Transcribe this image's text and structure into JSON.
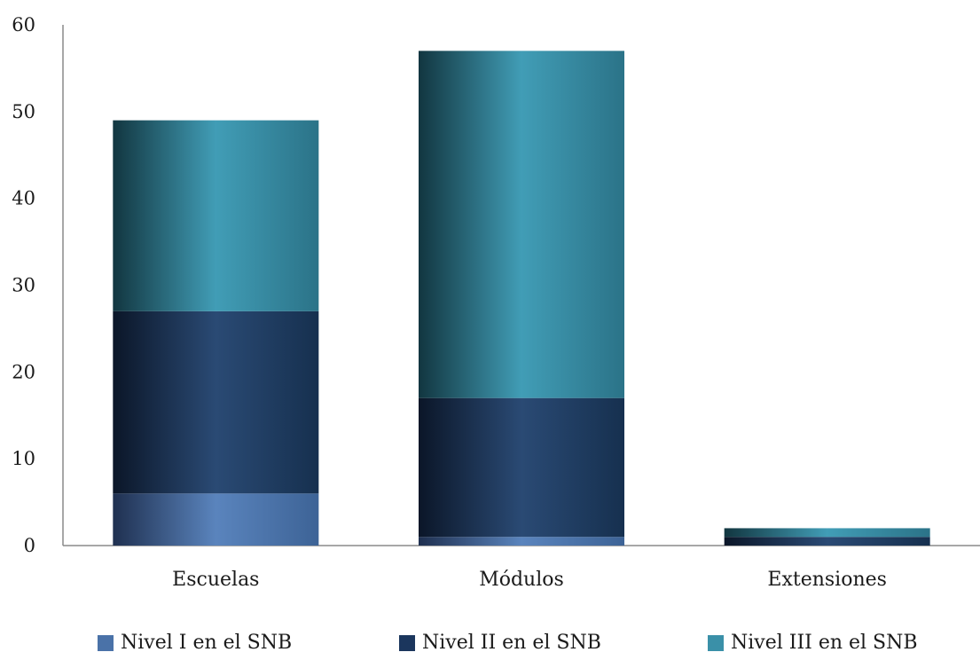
{
  "chart_data": {
    "type": "bar",
    "stacked": true,
    "categories": [
      "Escuelas",
      "Módulos",
      "Extensiones"
    ],
    "series": [
      {
        "name": "Nivel I en el SNB",
        "values": [
          6,
          1,
          0
        ],
        "color": "#4a72a8"
      },
      {
        "name": "Nivel II en el SNB",
        "values": [
          21,
          16,
          1
        ],
        "color": "#1b365d"
      },
      {
        "name": "Nivel III en el SNB",
        "values": [
          22,
          40,
          1
        ],
        "color": "#3a90a8"
      }
    ],
    "title": "",
    "xlabel": "",
    "ylabel": "",
    "ylim": [
      0,
      60
    ],
    "yticks": [
      "0",
      "10",
      "20",
      "30",
      "40",
      "50",
      "60"
    ],
    "grid": false,
    "legend_position": "bottom"
  }
}
